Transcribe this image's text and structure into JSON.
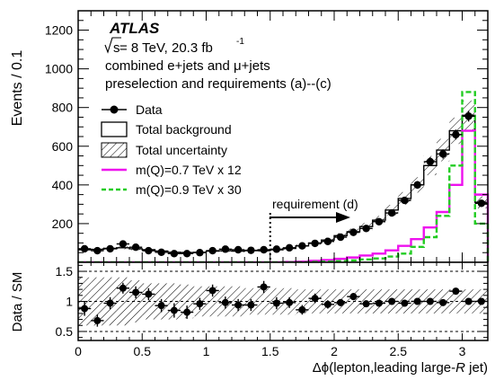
{
  "chart_data": [
    {
      "type": "histogram",
      "xlim": [
        0,
        3.2
      ],
      "ylim": [
        0,
        1300
      ],
      "ylabel": "Events / 0.1",
      "yticks": [
        200,
        400,
        600,
        800,
        1000,
        1200
      ],
      "xticks": [
        0,
        0.5,
        1,
        1.5,
        2,
        2.5,
        3
      ],
      "annotations": {
        "atlas": "ATLAS",
        "sqrt_s": "s",
        "energy": " = 8 TeV, 20.3 fb",
        "lumi_sup": "-1",
        "channel": "combined e+jets and μ+jets",
        "selection": "preselection and requirements (a)--(c)",
        "requirement": "requirement (d)"
      },
      "requirement_cut": 1.5,
      "legend": {
        "placement": "left",
        "entries": [
          {
            "label": "Data",
            "style": "marker"
          },
          {
            "label": "Total background",
            "style": "box"
          },
          {
            "label": "Total uncertainty",
            "style": "hatch"
          },
          {
            "label": "m(Q)=0.7 TeV x 12",
            "style": "line",
            "color": "#ee11ee"
          },
          {
            "label": "m(Q)=0.9 TeV x 30",
            "style": "dashed",
            "color": "#22cc22"
          }
        ]
      },
      "bins": [
        0,
        0.1,
        0.2,
        0.3,
        0.4,
        0.5,
        0.6,
        0.7,
        0.8,
        0.9,
        1.0,
        1.1,
        1.2,
        1.3,
        1.4,
        1.5,
        1.6,
        1.7,
        1.8,
        1.9,
        2.0,
        2.1,
        2.2,
        2.3,
        2.4,
        2.5,
        2.6,
        2.7,
        2.8,
        2.9,
        3.0,
        3.1,
        3.2
      ],
      "series": [
        {
          "name": "Data",
          "values": [
            70,
            60,
            70,
            95,
            78,
            60,
            52,
            45,
            45,
            50,
            60,
            68,
            65,
            62,
            65,
            68,
            75,
            85,
            98,
            108,
            130,
            155,
            175,
            210,
            255,
            320,
            400,
            520,
            560,
            660,
            755,
            305
          ]
        },
        {
          "name": "Total background",
          "values": [
            65,
            67,
            72,
            75,
            70,
            65,
            58,
            52,
            50,
            52,
            58,
            60,
            58,
            60,
            60,
            65,
            72,
            85,
            100,
            115,
            138,
            158,
            185,
            218,
            270,
            330,
            400,
            500,
            580,
            680,
            760,
            310
          ]
        },
        {
          "name": "m(Q)=0.7 TeV x 12",
          "values": [
            0,
            0,
            0,
            0,
            0,
            0,
            0,
            0,
            0,
            0,
            0,
            0,
            0,
            0,
            0,
            0,
            2,
            4,
            8,
            12,
            18,
            25,
            35,
            45,
            62,
            85,
            120,
            180,
            260,
            400,
            680,
            350
          ]
        },
        {
          "name": "m(Q)=0.9 TeV x 30",
          "values": [
            0,
            0,
            0,
            0,
            0,
            0,
            0,
            0,
            0,
            0,
            0,
            0,
            0,
            0,
            0,
            0,
            0,
            0,
            2,
            4,
            6,
            10,
            15,
            20,
            30,
            45,
            80,
            130,
            240,
            500,
            880,
            200
          ]
        }
      ],
      "uncertainty_fraction": 0.1
    },
    {
      "type": "ratio",
      "xlim": [
        0,
        3.2
      ],
      "ylim": [
        0.35,
        1.65
      ],
      "ylabel": "Data / SM",
      "xlabel": "Δϕ(lepton,leading large-",
      "xlabel_italic": "R",
      "xlabel_end": " jet)",
      "yticks": [
        0.5,
        1,
        1.5
      ],
      "ytick_labels": [
        "0.5",
        "1",
        "1.5"
      ],
      "xticks": [
        0,
        0.5,
        1,
        1.5,
        2,
        2.5,
        3
      ],
      "xtick_labels": [
        "0",
        "0.5",
        "1",
        "1.5",
        "2",
        "2.5",
        "3"
      ],
      "ratio": [
        0.88,
        0.68,
        0.97,
        1.22,
        1.15,
        1.12,
        0.93,
        0.85,
        0.82,
        0.96,
        1.18,
        0.98,
        0.94,
        0.94,
        1.24,
        0.97,
        0.98,
        0.86,
        1.05,
        0.95,
        0.98,
        1.08,
        0.96,
        0.97,
        1.0,
        0.97,
        1.0,
        1.0,
        0.98,
        1.17,
        1.0,
        1.0
      ],
      "ratio_err": [
        0.12,
        0.1,
        0.1,
        0.09,
        0.1,
        0.1,
        0.11,
        0.12,
        0.11,
        0.1,
        0.1,
        0.1,
        0.1,
        0.1,
        0.1,
        0.1,
        0.09,
        0.08,
        0.08,
        0.07,
        0.06,
        0.06,
        0.05,
        0.05,
        0.04,
        0.04,
        0.04,
        0.03,
        0.03,
        0.03,
        0.03,
        0.05
      ],
      "band_halfwidth": [
        0.4,
        0.4,
        0.4,
        0.4,
        0.35,
        0.3,
        0.3,
        0.3,
        0.28,
        0.25,
        0.25,
        0.25,
        0.25,
        0.22,
        0.22,
        0.22,
        0.22,
        0.2,
        0.2,
        0.2,
        0.2,
        0.2,
        0.2,
        0.2,
        0.2,
        0.2,
        0.2,
        0.2,
        0.2,
        0.2,
        0.2,
        0.2
      ],
      "dashed_lines": [
        0.5,
        1,
        1.5
      ]
    }
  ]
}
